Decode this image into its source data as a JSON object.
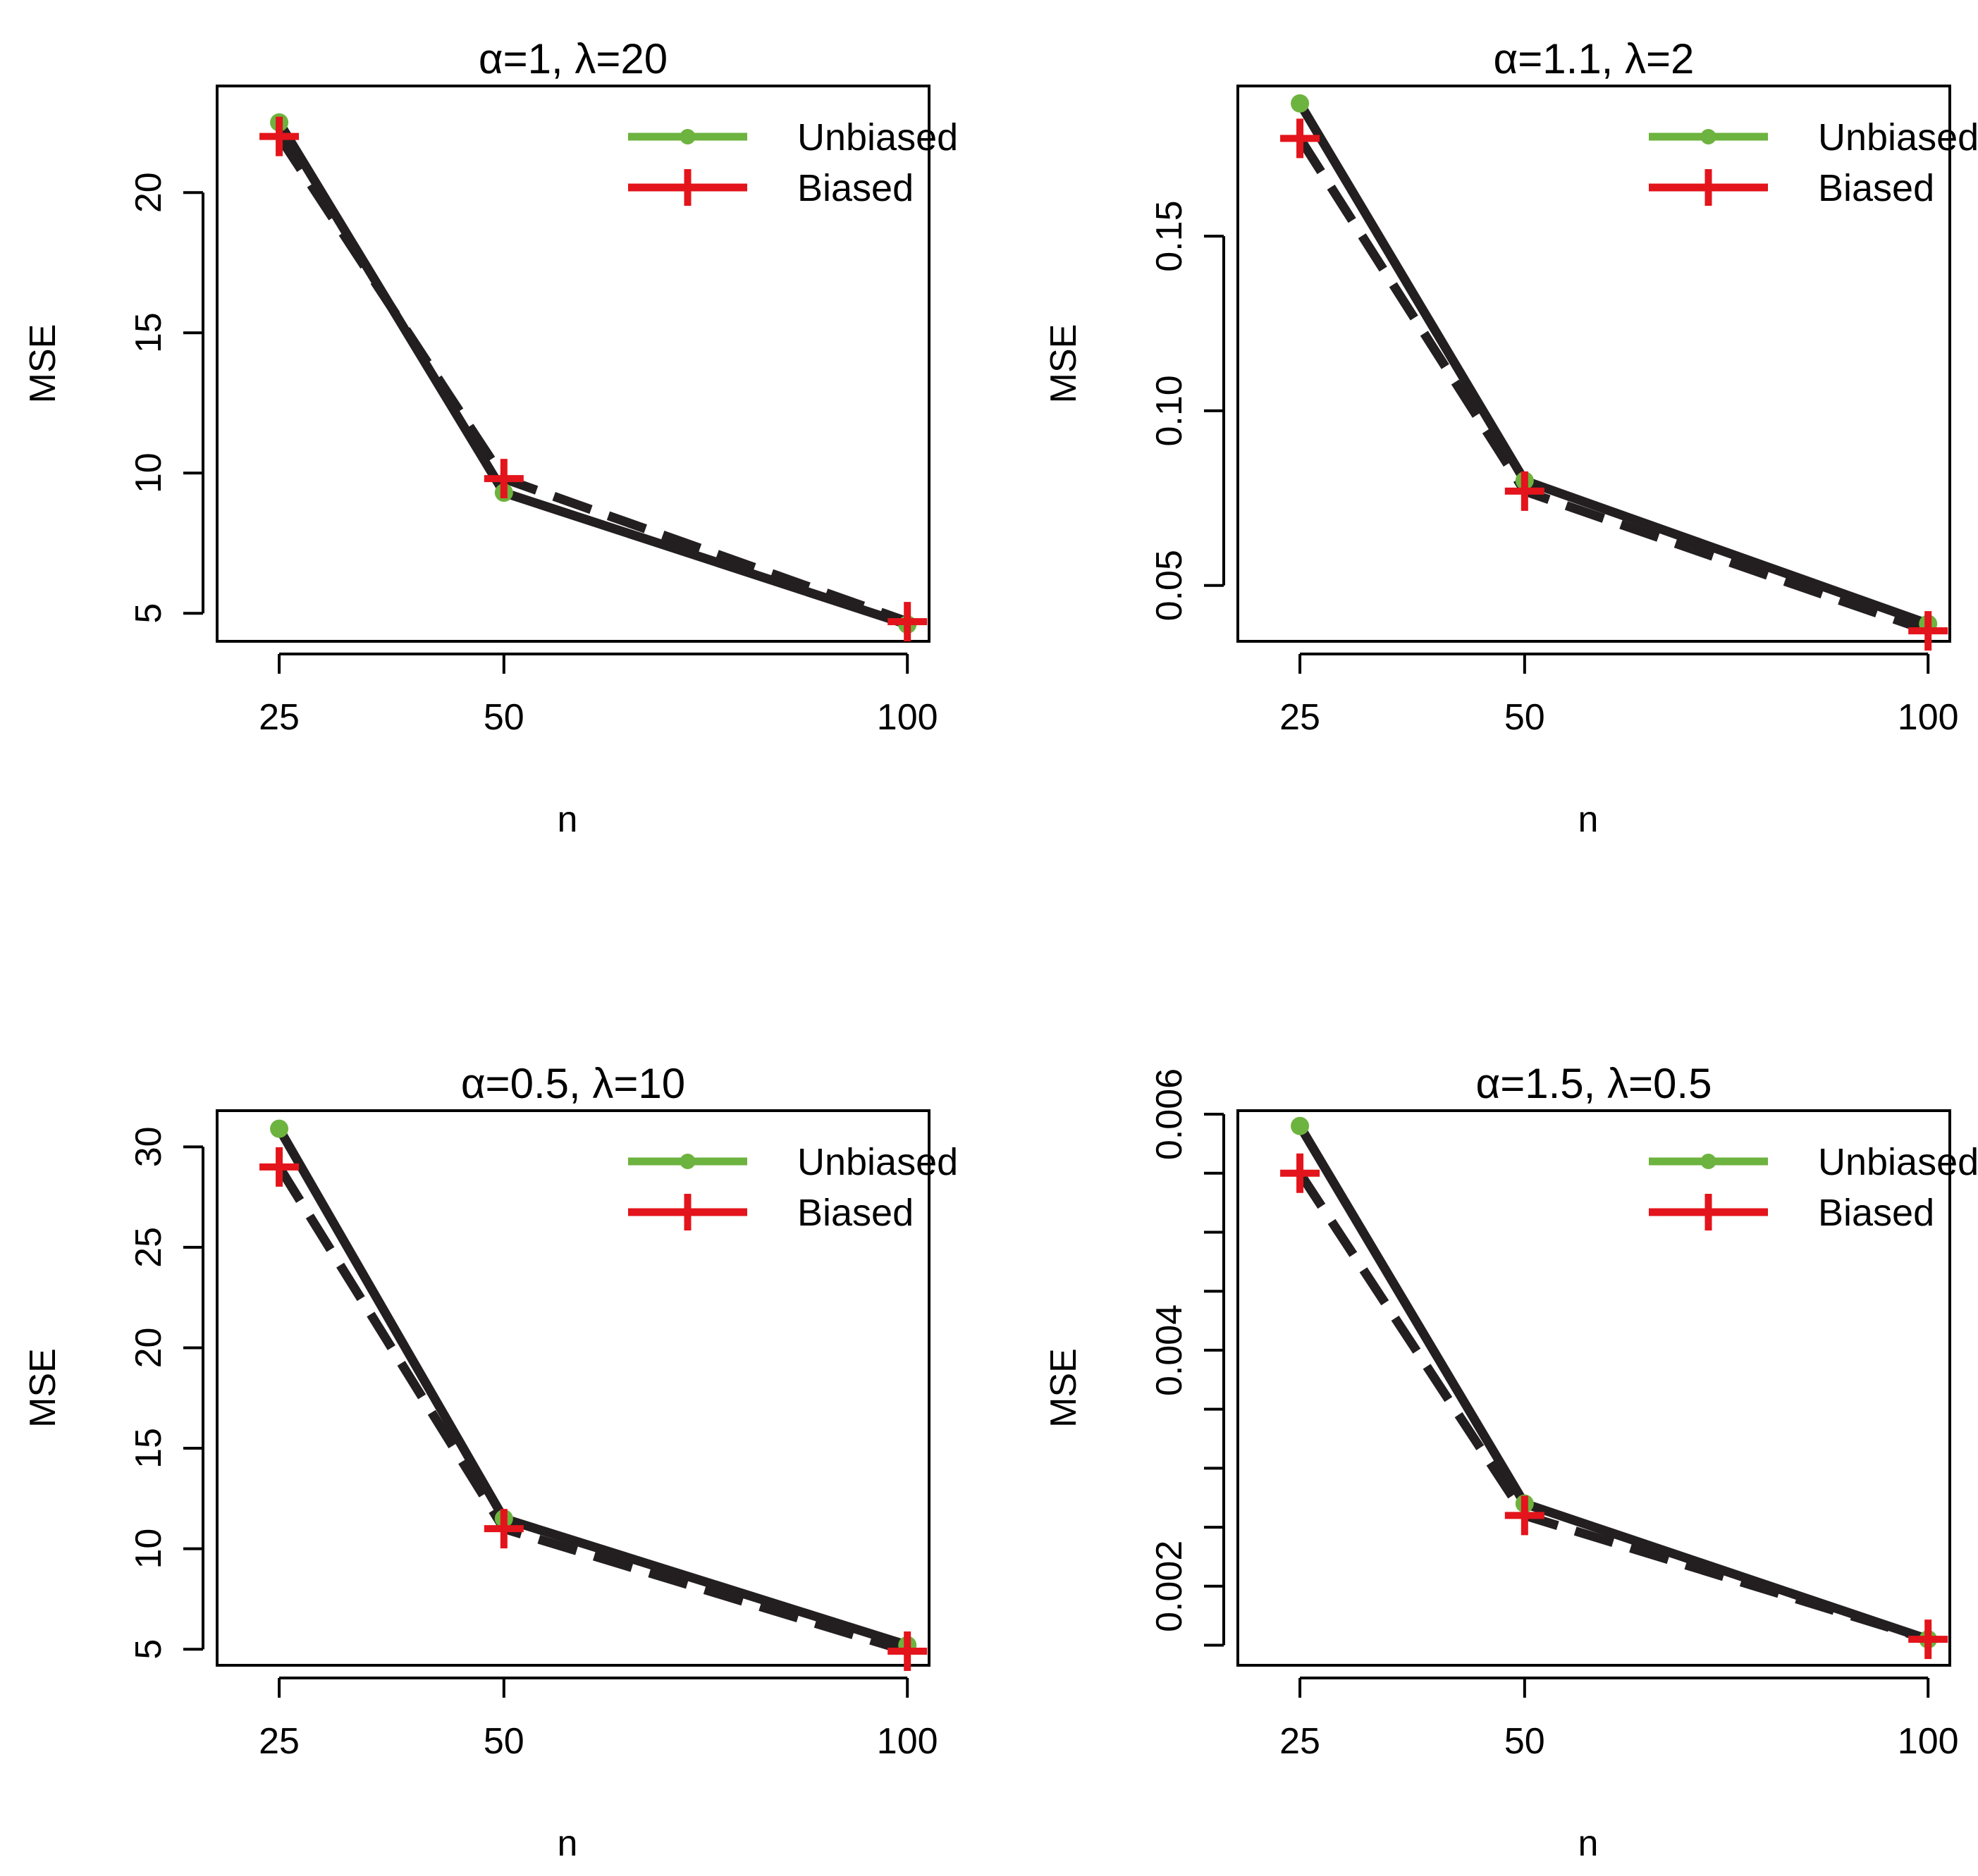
{
  "figure": {
    "colors": {
      "unbiased": "#6db33f",
      "biased": "#e3141b",
      "line": "#231f20",
      "axis": "#000000"
    }
  },
  "chart_data": [
    {
      "type": "line",
      "title": "α=1, λ=20",
      "xlabel": "n",
      "ylabel": "MSE",
      "x": [
        25,
        50,
        100
      ],
      "xticks": [
        "25",
        "50",
        "100"
      ],
      "yticks": [
        5,
        10,
        15,
        20
      ],
      "ytick_labels": [
        "5",
        "10",
        "15",
        "20"
      ],
      "ylim": [
        4.0,
        23.8
      ],
      "series": [
        {
          "name": "Unbiased",
          "marker": "dot",
          "line": "solid",
          "values": [
            22.5,
            9.3,
            4.6
          ]
        },
        {
          "name": "Biased",
          "marker": "cross",
          "line": "dashed",
          "values": [
            22.0,
            9.8,
            4.7
          ]
        }
      ],
      "legend": [
        "Unbiased",
        "Biased"
      ]
    },
    {
      "type": "line",
      "title": "α=1.1, λ=2",
      "xlabel": "n",
      "ylabel": "MSE",
      "x": [
        25,
        50,
        100
      ],
      "xticks": [
        "25",
        "50",
        "100"
      ],
      "yticks": [
        0.05,
        0.1,
        0.15
      ],
      "ytick_labels": [
        "0.05",
        "0.10",
        "0.15"
      ],
      "ylim": [
        0.034,
        0.193
      ],
      "series": [
        {
          "name": "Unbiased",
          "marker": "dot",
          "line": "solid",
          "values": [
            0.188,
            0.08,
            0.039
          ]
        },
        {
          "name": "Biased",
          "marker": "cross",
          "line": "dashed",
          "values": [
            0.178,
            0.077,
            0.037
          ]
        }
      ],
      "legend": [
        "Unbiased",
        "Biased"
      ]
    },
    {
      "type": "line",
      "title": "α=0.5, λ=10",
      "xlabel": "n",
      "ylabel": "MSE",
      "x": [
        25,
        50,
        100
      ],
      "xticks": [
        "25",
        "50",
        "100"
      ],
      "yticks": [
        5,
        10,
        15,
        20,
        25,
        30
      ],
      "ytick_labels": [
        "5",
        "10",
        "15",
        "20",
        "25",
        "30"
      ],
      "ylim": [
        4.2,
        31.8
      ],
      "series": [
        {
          "name": "Unbiased",
          "marker": "dot",
          "line": "solid",
          "values": [
            30.9,
            11.5,
            5.2
          ]
        },
        {
          "name": "Biased",
          "marker": "cross",
          "line": "dashed",
          "values": [
            29.0,
            11.0,
            4.9
          ]
        }
      ],
      "legend": [
        "Unbiased",
        "Biased"
      ]
    },
    {
      "type": "line",
      "title": "α=1.5, λ=0.5",
      "xlabel": "n",
      "ylabel": "MSE",
      "x": [
        25,
        50,
        100
      ],
      "xticks": [
        "25",
        "50",
        "100"
      ],
      "yticks": [
        0.0015,
        0.002,
        0.0025,
        0.003,
        0.0035,
        0.004,
        0.0045,
        0.005,
        0.0055,
        0.006
      ],
      "ytick_labels": [
        "",
        "0.002",
        "",
        "",
        "",
        "0.004",
        "",
        "",
        "",
        "0.006"
      ],
      "ylim": [
        0.00133,
        0.00603
      ],
      "series": [
        {
          "name": "Unbiased",
          "marker": "dot",
          "line": "solid",
          "values": [
            0.0059,
            0.0027,
            0.00155
          ]
        },
        {
          "name": "Biased",
          "marker": "cross",
          "line": "dashed",
          "values": [
            0.0055,
            0.0026,
            0.00155
          ]
        }
      ],
      "legend": [
        "Unbiased",
        "Biased"
      ]
    }
  ]
}
